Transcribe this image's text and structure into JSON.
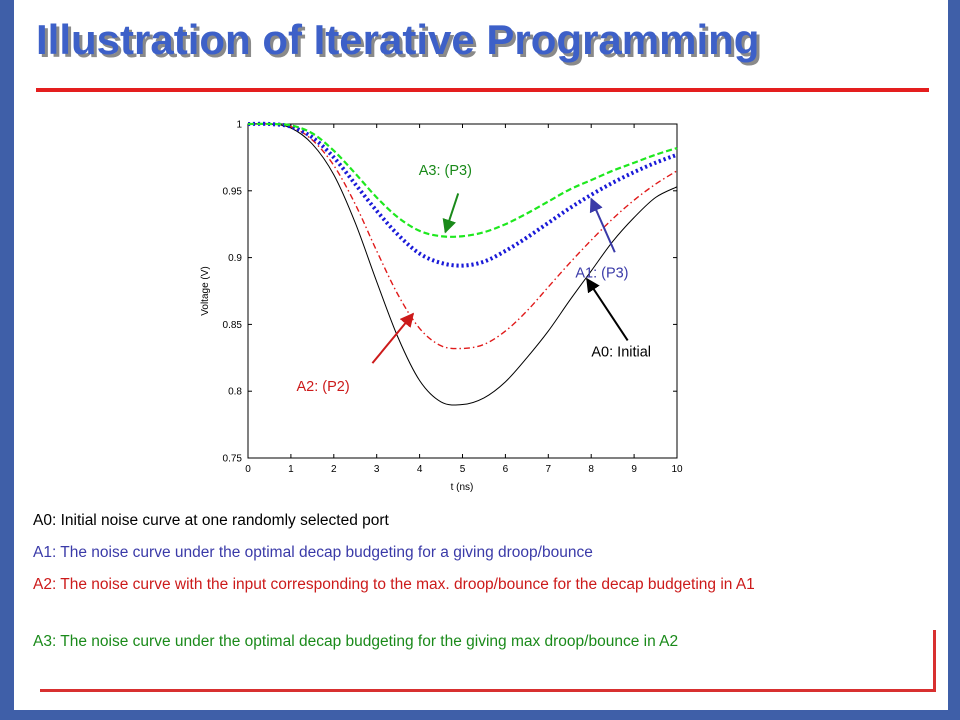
{
  "slide": {
    "title": "Illustration of Iterative Programming",
    "captions": [
      "A0: Initial noise curve at one randomly selected port",
      "A1: The noise curve under the optimal decap budgeting for a giving droop/bounce",
      "A2: The noise curve with the input corresponding to the max. droop/bounce for the decap budgeting in A1",
      "A3: The noise curve under the optimal decap budgeting for the giving max droop/bounce in A2"
    ]
  },
  "colors": {
    "frame": "#3f5fa8",
    "title": "#3d60c8",
    "rule": "#e41e1e",
    "a0": "#000000",
    "a1": "#1a1ad8",
    "a2": "#e01a1a",
    "a3": "#1ee81e",
    "label_a1": "#3a3aa8",
    "label_a2": "#cc1a1a",
    "label_a3": "#1a8a1a"
  },
  "chart_data": {
    "type": "line",
    "xlabel": "t (ns)",
    "ylabel": "Voltage (V)",
    "xlim": [
      0,
      10
    ],
    "ylim": [
      0.75,
      1.0
    ],
    "x_ticks": [
      0,
      1,
      2,
      3,
      4,
      5,
      6,
      7,
      8,
      9,
      10
    ],
    "y_ticks": [
      0.75,
      0.8,
      0.85,
      0.9,
      0.95,
      1
    ],
    "grid": false,
    "series": [
      {
        "name": "A0: Initial",
        "style": "solid",
        "color": "#000000",
        "x": [
          0,
          0.5,
          1,
          1.5,
          2,
          2.5,
          3,
          3.5,
          4,
          4.5,
          5,
          5.5,
          6,
          6.5,
          7,
          7.5,
          8,
          8.5,
          9,
          9.5,
          10
        ],
        "y": [
          1.0,
          1.0,
          0.997,
          0.985,
          0.962,
          0.926,
          0.882,
          0.84,
          0.808,
          0.792,
          0.79,
          0.795,
          0.807,
          0.825,
          0.845,
          0.868,
          0.89,
          0.912,
          0.93,
          0.945,
          0.953
        ]
      },
      {
        "name": "A1: (P3)",
        "style": "dotted",
        "color": "#1a1ad8",
        "x": [
          0,
          0.5,
          1,
          1.5,
          2,
          2.5,
          3,
          3.5,
          4,
          4.5,
          5,
          5.5,
          6,
          6.5,
          7,
          7.5,
          8,
          8.5,
          9,
          9.5,
          10
        ],
        "y": [
          1.0,
          1.0,
          0.998,
          0.99,
          0.975,
          0.955,
          0.935,
          0.917,
          0.903,
          0.896,
          0.894,
          0.897,
          0.905,
          0.915,
          0.926,
          0.937,
          0.947,
          0.956,
          0.964,
          0.971,
          0.977
        ]
      },
      {
        "name": "A2: (P2)",
        "style": "dashdot",
        "color": "#e01a1a",
        "x": [
          0,
          0.5,
          1,
          1.5,
          2,
          2.5,
          3,
          3.5,
          4,
          4.5,
          5,
          5.5,
          6,
          6.5,
          7,
          7.5,
          8,
          8.5,
          9,
          9.5,
          10
        ],
        "y": [
          1.0,
          1.0,
          0.998,
          0.988,
          0.969,
          0.94,
          0.905,
          0.872,
          0.847,
          0.834,
          0.832,
          0.835,
          0.845,
          0.86,
          0.878,
          0.896,
          0.913,
          0.929,
          0.943,
          0.955,
          0.965
        ]
      },
      {
        "name": "A3: (P3)",
        "style": "dashed",
        "color": "#1ee81e",
        "x": [
          0,
          0.5,
          1,
          1.5,
          2,
          2.5,
          3,
          3.5,
          4,
          4.5,
          5,
          5.5,
          6,
          6.5,
          7,
          7.5,
          8,
          8.5,
          9,
          9.5,
          10
        ],
        "y": [
          1.0,
          1.0,
          0.999,
          0.993,
          0.98,
          0.963,
          0.945,
          0.93,
          0.92,
          0.916,
          0.916,
          0.919,
          0.925,
          0.933,
          0.942,
          0.951,
          0.958,
          0.965,
          0.971,
          0.977,
          0.982
        ]
      }
    ],
    "annotations": [
      {
        "text": "A3: (P3)",
        "series": "A3: (P3)",
        "color": "#1a8a1a",
        "text_x": 4.6,
        "text_y": 0.962,
        "arrow_from": [
          4.9,
          0.948
        ],
        "arrow_to": [
          4.6,
          0.919
        ]
      },
      {
        "text": "A1: (P3)",
        "series": "A1: (P3)",
        "color": "#3a3aa8",
        "text_x": 8.25,
        "text_y": 0.885,
        "arrow_from": [
          8.55,
          0.904
        ],
        "arrow_to": [
          8.0,
          0.944
        ]
      },
      {
        "text": "A0: Initial",
        "series": "A0: Initial",
        "color": "#000000",
        "text_x": 8.7,
        "text_y": 0.826,
        "arrow_from": [
          8.85,
          0.838
        ],
        "arrow_to": [
          7.9,
          0.884
        ]
      },
      {
        "text": "A2: (P2)",
        "series": "A2: (P2)",
        "color": "#cc1a1a",
        "text_x": 1.75,
        "text_y": 0.8,
        "arrow_from": [
          2.9,
          0.821
        ],
        "arrow_to": [
          3.85,
          0.858
        ]
      }
    ]
  }
}
